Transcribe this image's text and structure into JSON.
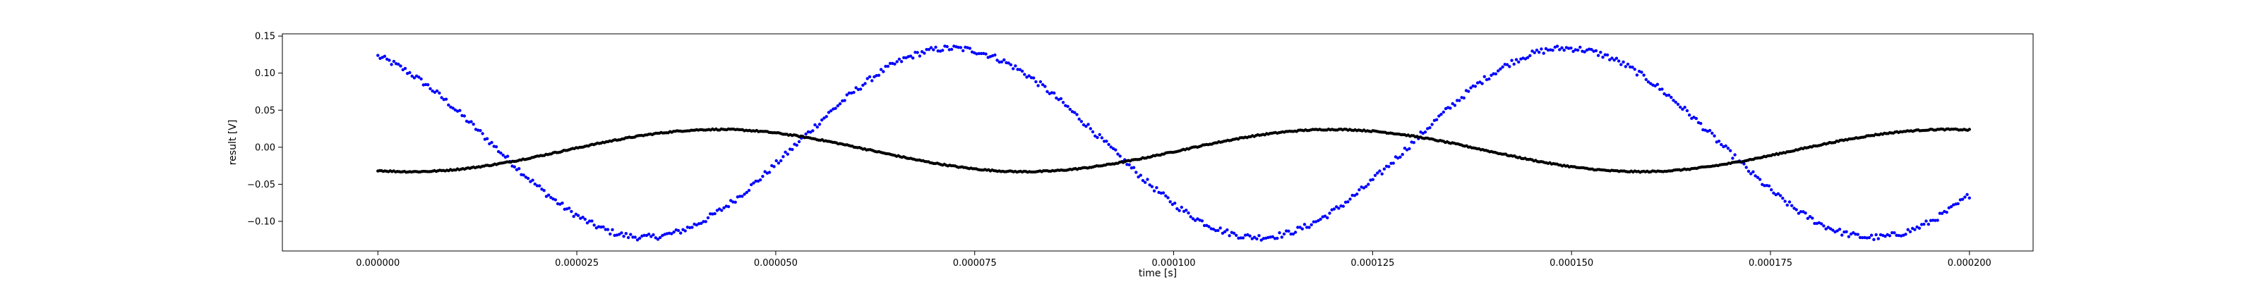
{
  "chart_data": {
    "type": "scatter",
    "title": "",
    "xlabel": "time [s]",
    "ylabel": "result [V]",
    "xlim": [
      -1.2e-05,
      0.000208
    ],
    "ylim": [
      -0.14,
      0.153
    ],
    "grid": false,
    "x_ticks": [
      0.0,
      2.5e-05,
      5e-05,
      7.5e-05,
      0.0001,
      0.000125,
      0.00015,
      0.000175,
      0.0002
    ],
    "x_tick_labels": [
      "0.000000",
      "0.000025",
      "0.000050",
      "0.000075",
      "0.000100",
      "0.000125",
      "0.000150",
      "0.000175",
      "0.000200"
    ],
    "y_ticks": [
      -0.1,
      -0.05,
      0.0,
      0.05,
      0.1,
      0.15
    ],
    "y_tick_labels": [
      "−0.10",
      "−0.05",
      "0.00",
      "0.05",
      "0.10",
      "0.15"
    ],
    "series": [
      {
        "color": "#0000ff",
        "marker": "dot",
        "model": "sine",
        "x_range": [
          0.0,
          0.0002
        ],
        "amplitude": 0.1275,
        "period": 7.72e-05,
        "phase_time": 7.21e-05,
        "offset": 0.006,
        "noise": 0.004,
        "points": 700
      },
      {
        "color": "#000000",
        "marker": "dot",
        "model": "sine",
        "x_range": [
          0.0,
          0.0002
        ],
        "amplitude": 0.0285,
        "period": 7.72e-05,
        "phase_time": 4.28e-05,
        "offset": -0.0045,
        "noise": 0.0008,
        "points": 900
      }
    ]
  }
}
